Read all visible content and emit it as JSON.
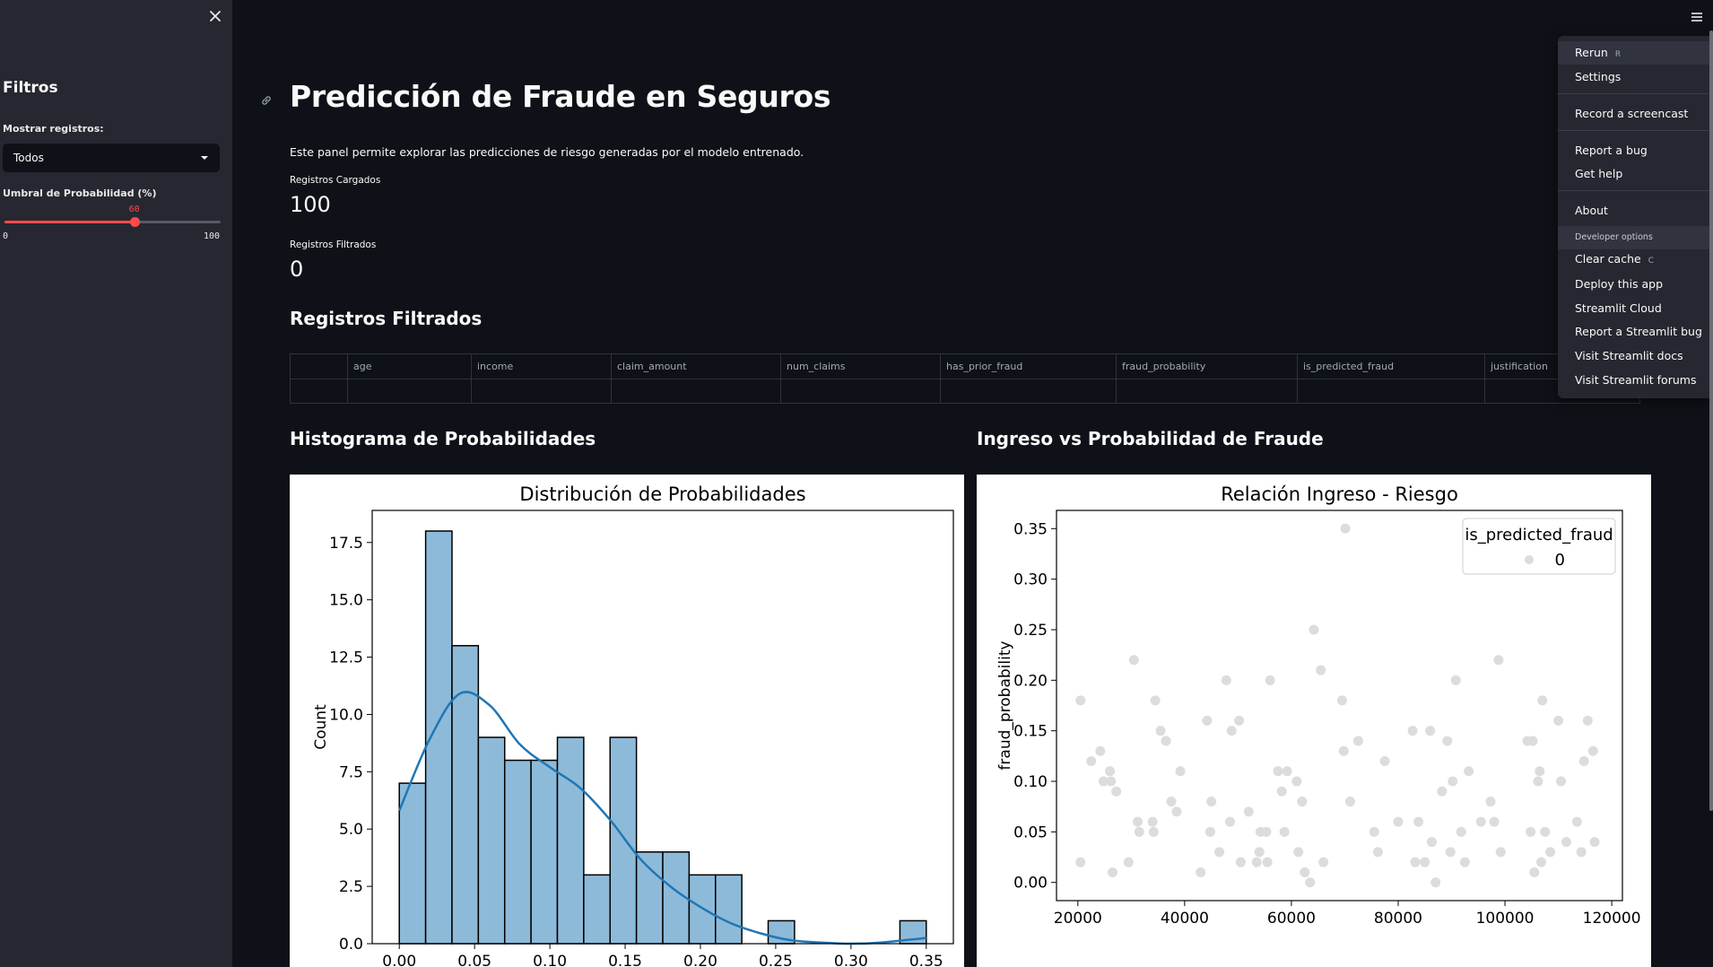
{
  "sidebar": {
    "title": "Filtros",
    "show_records_label": "Mostrar registros:",
    "show_records_value": "Todos",
    "threshold_label": "Umbral de Probabilidad (%)",
    "threshold_value": "60",
    "threshold_min": "0",
    "threshold_max": "100",
    "threshold_fraction": 0.6
  },
  "main": {
    "title": "Predicción de Fraude en Seguros",
    "caption": "Este panel permite explorar las predicciones de riesgo generadas por el modelo entrenado.",
    "metrics": [
      {
        "label": "Registros Cargados",
        "value": "100"
      },
      {
        "label": "Registros Filtrados",
        "value": "0"
      }
    ],
    "table_heading": "Registros Filtrados",
    "table_columns": [
      "",
      "age",
      "income",
      "claim_amount",
      "num_claims",
      "has_prior_fraud",
      "fraud_probability",
      "is_predicted_fraud",
      "justification"
    ],
    "hist_heading": "Histograma de Probabilidades",
    "scatter_heading": "Ingreso vs Probabilidad de Fraude"
  },
  "menu": {
    "items": [
      {
        "label": "Rerun",
        "key": "R"
      },
      {
        "label": "Settings"
      },
      {
        "label": "Record a screencast"
      },
      {
        "label": "Report a bug"
      },
      {
        "label": "Get help"
      },
      {
        "label": "About"
      }
    ],
    "developer_header": "Developer options",
    "developer_items": [
      {
        "label": "Clear cache",
        "key": "C"
      },
      {
        "label": "Deploy this app"
      },
      {
        "label": "Streamlit Cloud"
      },
      {
        "label": "Report a Streamlit bug"
      },
      {
        "label": "Visit Streamlit docs"
      },
      {
        "label": "Visit Streamlit forums"
      }
    ]
  },
  "chart_data": [
    {
      "type": "bar",
      "title": "Distribución de Probabilidades",
      "xlabel": "",
      "ylabel": "Count",
      "bin_start": 0.0,
      "bin_width": 0.0175,
      "values": [
        7,
        18,
        13,
        9,
        8,
        8,
        9,
        3,
        9,
        4,
        4,
        3,
        3,
        0,
        1,
        0,
        0,
        0,
        0,
        1
      ],
      "kde": [
        [
          0.0,
          5.8
        ],
        [
          0.02,
          8.9
        ],
        [
          0.04,
          10.9
        ],
        [
          0.06,
          10.4
        ],
        [
          0.08,
          8.7
        ],
        [
          0.1,
          7.7
        ],
        [
          0.12,
          6.8
        ],
        [
          0.14,
          5.4
        ],
        [
          0.16,
          3.7
        ],
        [
          0.18,
          2.5
        ],
        [
          0.2,
          1.6
        ],
        [
          0.22,
          0.9
        ],
        [
          0.24,
          0.45
        ],
        [
          0.26,
          0.15
        ],
        [
          0.28,
          0.05
        ],
        [
          0.3,
          0.0
        ],
        [
          0.32,
          0.05
        ],
        [
          0.35,
          0.25
        ]
      ],
      "xlim": [
        -0.018,
        0.368
      ],
      "ylim": [
        0,
        18.9
      ],
      "xticks": [
        0.0,
        0.05,
        0.1,
        0.15,
        0.2,
        0.25,
        0.3,
        0.35
      ],
      "xtick_labels": [
        "0.00",
        "0.05",
        "0.10",
        "0.15",
        "0.20",
        "0.25",
        "0.30",
        "0.35"
      ],
      "yticks": [
        0,
        2.5,
        5,
        7.5,
        10,
        12.5,
        15,
        17.5
      ],
      "ytick_labels": [
        "0.0",
        "2.5",
        "5.0",
        "7.5",
        "10.0",
        "12.5",
        "15.0",
        "17.5"
      ],
      "bar_color": "#8ebad9",
      "line_color": "#1f77b4"
    },
    {
      "type": "scatter",
      "title": "Relación Ingreso - Riesgo",
      "xlabel": "",
      "ylabel": "fraud_probability",
      "legend_title": "is_predicted_fraud",
      "legend_entries": [
        "0"
      ],
      "legend_position": "top-right",
      "point_color": "#dcdcdc",
      "xlim": [
        16000,
        122000
      ],
      "ylim": [
        -0.018,
        0.368
      ],
      "xticks": [
        20000,
        40000,
        60000,
        80000,
        100000,
        120000
      ],
      "xtick_labels": [
        "20000",
        "40000",
        "60000",
        "80000",
        "100000",
        "120000"
      ],
      "yticks": [
        0.0,
        0.05,
        0.1,
        0.15,
        0.2,
        0.25,
        0.3,
        0.35
      ],
      "ytick_labels": [
        "0.00",
        "0.05",
        "0.10",
        "0.15",
        "0.20",
        "0.25",
        "0.30",
        "0.35"
      ],
      "points": [
        [
          20500,
          0.18
        ],
        [
          20500,
          0.02
        ],
        [
          22500,
          0.12
        ],
        [
          24200,
          0.13
        ],
        [
          24800,
          0.1
        ],
        [
          26000,
          0.11
        ],
        [
          26200,
          0.1
        ],
        [
          26500,
          0.01
        ],
        [
          27200,
          0.09
        ],
        [
          29500,
          0.02
        ],
        [
          30500,
          0.22
        ],
        [
          31200,
          0.06
        ],
        [
          31500,
          0.05
        ],
        [
          34000,
          0.06
        ],
        [
          34200,
          0.05
        ],
        [
          34500,
          0.18
        ],
        [
          35500,
          0.15
        ],
        [
          36500,
          0.14
        ],
        [
          37500,
          0.08
        ],
        [
          38500,
          0.07
        ],
        [
          39200,
          0.11
        ],
        [
          43000,
          0.01
        ],
        [
          44200,
          0.16
        ],
        [
          44800,
          0.05
        ],
        [
          45000,
          0.08
        ],
        [
          46500,
          0.03
        ],
        [
          47800,
          0.2
        ],
        [
          48500,
          0.06
        ],
        [
          48800,
          0.15
        ],
        [
          50200,
          0.16
        ],
        [
          50500,
          0.02
        ],
        [
          52000,
          0.07
        ],
        [
          53500,
          0.02
        ],
        [
          54000,
          0.03
        ],
        [
          54200,
          0.05
        ],
        [
          55300,
          0.05
        ],
        [
          55500,
          0.02
        ],
        [
          56000,
          0.2
        ],
        [
          57500,
          0.11
        ],
        [
          58200,
          0.09
        ],
        [
          58700,
          0.05
        ],
        [
          59200,
          0.11
        ],
        [
          61000,
          0.1
        ],
        [
          61300,
          0.03
        ],
        [
          62000,
          0.08
        ],
        [
          62500,
          0.01
        ],
        [
          63500,
          0.0
        ],
        [
          64200,
          0.25
        ],
        [
          65500,
          0.21
        ],
        [
          66000,
          0.02
        ],
        [
          69500,
          0.18
        ],
        [
          69800,
          0.13
        ],
        [
          70100,
          0.35
        ],
        [
          71000,
          0.08
        ],
        [
          72500,
          0.14
        ],
        [
          75500,
          0.05
        ],
        [
          76200,
          0.03
        ],
        [
          77500,
          0.12
        ],
        [
          80000,
          0.06
        ],
        [
          82700,
          0.15
        ],
        [
          83200,
          0.02
        ],
        [
          83800,
          0.06
        ],
        [
          85000,
          0.02
        ],
        [
          86000,
          0.15
        ],
        [
          86300,
          0.04
        ],
        [
          87000,
          0.0
        ],
        [
          88200,
          0.09
        ],
        [
          89200,
          0.14
        ],
        [
          89800,
          0.03
        ],
        [
          90200,
          0.1
        ],
        [
          90800,
          0.2
        ],
        [
          91800,
          0.05
        ],
        [
          92500,
          0.02
        ],
        [
          93200,
          0.11
        ],
        [
          95500,
          0.06
        ],
        [
          97300,
          0.08
        ],
        [
          98000,
          0.06
        ],
        [
          98800,
          0.22
        ],
        [
          99200,
          0.03
        ],
        [
          104200,
          0.14
        ],
        [
          104800,
          0.05
        ],
        [
          105200,
          0.14
        ],
        [
          105500,
          0.01
        ],
        [
          106200,
          0.1
        ],
        [
          106500,
          0.11
        ],
        [
          106800,
          0.02
        ],
        [
          107000,
          0.18
        ],
        [
          107500,
          0.05
        ],
        [
          108500,
          0.03
        ],
        [
          110000,
          0.16
        ],
        [
          110500,
          0.1
        ],
        [
          111500,
          0.04
        ],
        [
          113500,
          0.06
        ],
        [
          114300,
          0.03
        ],
        [
          114800,
          0.12
        ],
        [
          115500,
          0.16
        ],
        [
          116500,
          0.13
        ],
        [
          116800,
          0.04
        ]
      ]
    }
  ]
}
